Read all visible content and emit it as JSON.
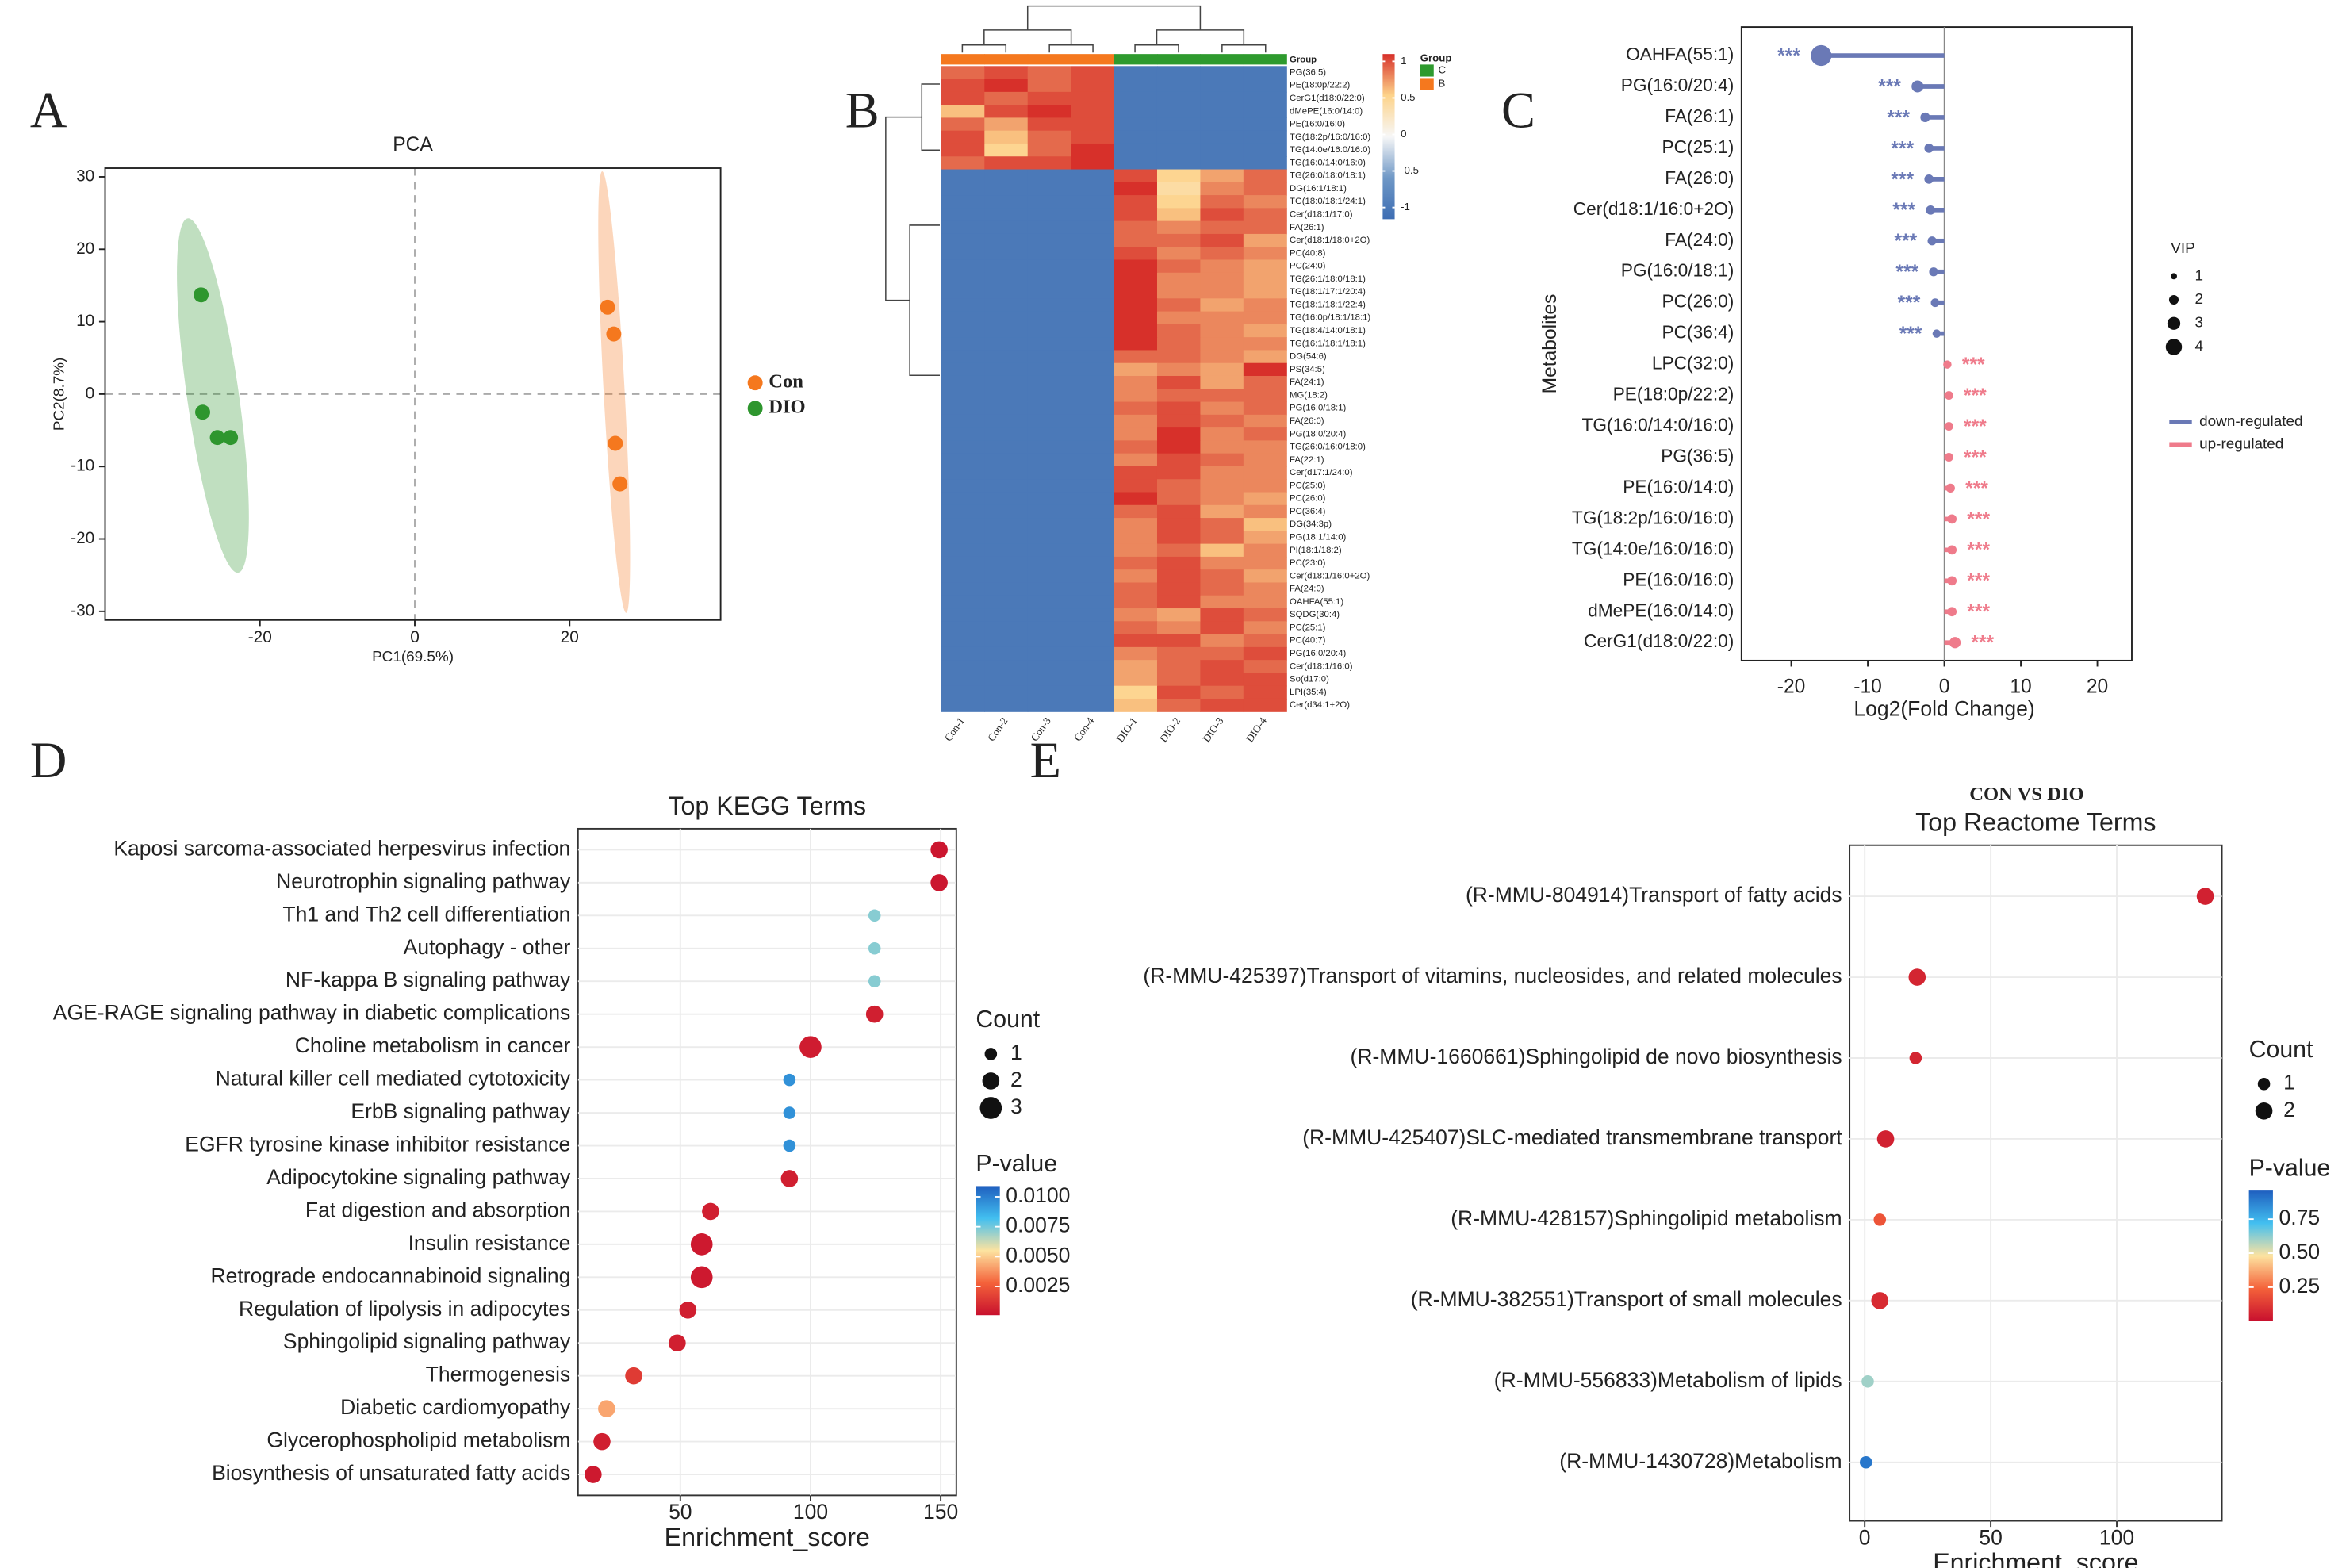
{
  "chart_data": [
    {
      "panel": "A",
      "type": "scatter",
      "title": "PCA",
      "x_label": "PC1(69.5%)",
      "y_label": "PC2(8.7%)",
      "xlim": [
        -40,
        39.5
      ],
      "ylim": [
        -31.2,
        31.2
      ],
      "xticks": [
        -20,
        0,
        20
      ],
      "yticks": [
        -30,
        -20,
        -10,
        0,
        10,
        20,
        30
      ],
      "zero_lines": true,
      "series": [
        {
          "name": "Con",
          "color": "#f5781e",
          "x": [
            24.9,
            25.7,
            25.9,
            26.5
          ],
          "values": [
            12.0,
            8.3,
            -6.8,
            -12.4
          ]
        },
        {
          "name": "DIO",
          "color": "#2e962e",
          "x": [
            -27.6,
            -27.4,
            -25.5,
            -23.8
          ],
          "values": [
            13.7,
            -2.5,
            -6.0,
            -6.0
          ]
        }
      ]
    },
    {
      "panel": "B",
      "type": "heatmap",
      "group_title": "Group",
      "groups": [
        {
          "name": "C",
          "color": "#2e9a2e"
        },
        {
          "name": "B",
          "color": "#f5781e"
        }
      ],
      "column_groups": [
        "B",
        "B",
        "B",
        "B",
        "C",
        "C",
        "C",
        "C"
      ],
      "columns": [
        "Con-1",
        "Con-2",
        "Con-3",
        "Con-4",
        "DIO-1",
        "DIO-2",
        "DIO-3",
        "DIO-4"
      ],
      "rows": [
        "PG(36:5)",
        "PE(18:0p/22:2)",
        "CerG1(d18:0/22:0)",
        "dMePE(16:0/14:0)",
        "PE(16:0/16:0)",
        "TG(18:2p/16:0/16:0)",
        "TG(14:0e/16:0/16:0)",
        "TG(16:0/14:0/16:0)",
        "TG(26:0/18:0/18:1)",
        "DG(16:1/18:1)",
        "TG(18:0/18:1/24:1)",
        "Cer(d18:1/17:0)",
        "FA(26:1)",
        "Cer(d18:1/18:0+2O)",
        "PC(40:8)",
        "PC(24:0)",
        "TG(26:1/18:0/18:1)",
        "TG(18:1/17:1/20:4)",
        "TG(18:1/18:1/22:4)",
        "TG(16:0p/18:1/18:1)",
        "TG(18:4/14:0/18:1)",
        "TG(16:1/18:1/18:1)",
        "DG(54:6)",
        "PS(34:5)",
        "FA(24:1)",
        "MG(18:2)",
        "PG(16:0/18:1)",
        "FA(26:0)",
        "PG(18:0/20:4)",
        "TG(26:0/16:0/18:0)",
        "FA(22:1)",
        "Cer(d17:1/24:0)",
        "PC(25:0)",
        "PC(26:0)",
        "PC(36:4)",
        "DG(34:3p)",
        "PG(18:1/14:0)",
        "PI(18:1/18:2)",
        "PC(23:0)",
        "Cer(d18:1/16:0+2O)",
        "FA(24:0)",
        "OAHFA(55:1)",
        "SQDG(30:4)",
        "PC(25:1)",
        "PC(40:7)",
        "PG(16:0/20:4)",
        "Cer(d18:1/16:0)",
        "So(d17:0)",
        "LPI(35:4)",
        "Cer(d34:1+2O)"
      ],
      "values": [
        [
          0.9,
          1.0,
          0.9,
          1.0,
          -1.0,
          -1.0,
          -1.0,
          -1.0
        ],
        [
          1.0,
          1.1,
          0.9,
          1.0,
          -1.0,
          -1.0,
          -1.0,
          -1.0
        ],
        [
          1.0,
          0.9,
          1.0,
          1.0,
          -1.0,
          -1.0,
          -1.0,
          -1.0
        ],
        [
          0.6,
          1.0,
          1.1,
          1.0,
          -1.0,
          -1.0,
          -1.0,
          -1.0
        ],
        [
          0.9,
          0.7,
          1.0,
          1.0,
          -1.0,
          -1.0,
          -1.0,
          -1.0
        ],
        [
          1.0,
          0.6,
          0.9,
          1.0,
          -1.0,
          -1.0,
          -1.0,
          -1.0
        ],
        [
          1.0,
          0.5,
          0.9,
          1.1,
          -1.0,
          -1.0,
          -1.0,
          -1.0
        ],
        [
          0.9,
          1.0,
          1.0,
          1.1,
          -1.0,
          -1.0,
          -1.0,
          -1.0
        ],
        [
          -1.0,
          -1.0,
          -1.0,
          -1.0,
          1.0,
          0.5,
          0.7,
          0.9
        ],
        [
          -1.0,
          -1.0,
          -1.0,
          -1.0,
          1.1,
          0.4,
          0.8,
          0.9
        ],
        [
          -1.0,
          -1.0,
          -1.0,
          -1.0,
          1.0,
          0.5,
          0.9,
          0.8
        ],
        [
          -1.0,
          -1.0,
          -1.0,
          -1.0,
          1.0,
          0.6,
          1.0,
          0.9
        ],
        [
          -1.0,
          -1.0,
          -1.0,
          -1.0,
          0.9,
          0.8,
          0.9,
          0.9
        ],
        [
          -1.0,
          -1.0,
          -1.0,
          -1.0,
          0.9,
          0.9,
          1.0,
          0.7
        ],
        [
          -1.0,
          -1.0,
          -1.0,
          -1.0,
          1.0,
          0.8,
          0.9,
          0.8
        ],
        [
          -1.0,
          -1.0,
          -1.0,
          -1.0,
          1.1,
          0.9,
          0.8,
          0.7
        ],
        [
          -1.0,
          -1.0,
          -1.0,
          -1.0,
          1.2,
          0.8,
          0.8,
          0.7
        ],
        [
          -1.0,
          -1.0,
          -1.0,
          -1.0,
          1.2,
          0.8,
          0.8,
          0.7
        ],
        [
          -1.0,
          -1.0,
          -1.0,
          -1.0,
          1.2,
          0.9,
          0.7,
          0.8
        ],
        [
          -1.0,
          -1.0,
          -1.0,
          -1.0,
          1.2,
          0.8,
          0.8,
          0.8
        ],
        [
          -1.0,
          -1.0,
          -1.0,
          -1.0,
          1.2,
          0.9,
          0.8,
          0.7
        ],
        [
          -1.0,
          -1.0,
          -1.0,
          -1.0,
          1.1,
          0.9,
          0.8,
          0.8
        ],
        [
          -1.0,
          -1.0,
          -1.0,
          -1.0,
          0.9,
          0.9,
          0.8,
          0.7
        ],
        [
          -1.0,
          -1.0,
          -1.0,
          -1.0,
          0.7,
          0.8,
          0.7,
          1.3
        ],
        [
          -1.0,
          -1.0,
          -1.0,
          -1.0,
          0.8,
          1.0,
          0.7,
          0.9
        ],
        [
          -1.0,
          -1.0,
          -1.0,
          -1.0,
          0.8,
          0.9,
          0.9,
          0.9
        ],
        [
          -1.0,
          -1.0,
          -1.0,
          -1.0,
          0.9,
          1.0,
          0.8,
          0.9
        ],
        [
          -1.0,
          -1.0,
          -1.0,
          -1.0,
          0.8,
          1.0,
          0.9,
          0.8
        ],
        [
          -1.0,
          -1.0,
          -1.0,
          -1.0,
          0.8,
          1.1,
          0.8,
          0.9
        ],
        [
          -1.0,
          -1.0,
          -1.0,
          -1.0,
          0.9,
          1.1,
          0.8,
          0.8
        ],
        [
          -1.0,
          -1.0,
          -1.0,
          -1.0,
          0.8,
          1.0,
          0.9,
          0.8
        ],
        [
          -1.0,
          -1.0,
          -1.0,
          -1.0,
          1.0,
          1.0,
          0.8,
          0.8
        ],
        [
          -1.0,
          -1.0,
          -1.0,
          -1.0,
          1.0,
          0.9,
          0.8,
          0.8
        ],
        [
          -1.0,
          -1.0,
          -1.0,
          -1.0,
          1.1,
          0.9,
          0.8,
          0.7
        ],
        [
          -1.0,
          -1.0,
          -1.0,
          -1.0,
          0.9,
          1.0,
          0.7,
          0.8
        ],
        [
          -1.0,
          -1.0,
          -1.0,
          -1.0,
          0.8,
          1.0,
          0.9,
          0.6
        ],
        [
          -1.0,
          -1.0,
          -1.0,
          -1.0,
          0.8,
          1.0,
          0.9,
          0.7
        ],
        [
          -1.0,
          -1.0,
          -1.0,
          -1.0,
          0.8,
          0.9,
          0.6,
          0.8
        ],
        [
          -1.0,
          -1.0,
          -1.0,
          -1.0,
          0.9,
          1.0,
          0.8,
          0.8
        ],
        [
          -1.0,
          -1.0,
          -1.0,
          -1.0,
          0.8,
          1.0,
          0.9,
          0.7
        ],
        [
          -1.0,
          -1.0,
          -1.0,
          -1.0,
          0.9,
          1.0,
          0.9,
          0.8
        ],
        [
          -1.0,
          -1.0,
          -1.0,
          -1.0,
          0.9,
          1.0,
          0.8,
          0.8
        ],
        [
          -1.0,
          -1.0,
          -1.0,
          -1.0,
          0.8,
          0.7,
          1.0,
          0.9
        ],
        [
          -1.0,
          -1.0,
          -1.0,
          -1.0,
          0.9,
          0.8,
          1.0,
          0.8
        ],
        [
          -1.0,
          -1.0,
          -1.0,
          -1.0,
          1.0,
          1.0,
          0.8,
          0.9
        ],
        [
          -1.0,
          -1.0,
          -1.0,
          -1.0,
          0.8,
          0.9,
          0.9,
          1.0
        ],
        [
          -1.0,
          -1.0,
          -1.0,
          -1.0,
          0.7,
          0.9,
          1.0,
          0.9
        ],
        [
          -1.0,
          -1.0,
          -1.0,
          -1.0,
          0.7,
          0.9,
          1.0,
          1.0
        ],
        [
          -1.0,
          -1.0,
          -1.0,
          -1.0,
          0.5,
          1.0,
          0.9,
          1.0
        ],
        [
          -1.0,
          -1.0,
          -1.0,
          -1.0,
          0.6,
          0.9,
          1.0,
          1.0
        ]
      ],
      "clim": [
        -1.16,
        1.1
      ],
      "cticks": [
        1,
        0.5,
        0,
        -0.5,
        -1
      ],
      "colormap": [
        "#3d6db3",
        "#6f98c6",
        "#f7f7f7",
        "#fdd38a",
        "#d7302a"
      ]
    },
    {
      "panel": "C",
      "type": "lollipop",
      "x_label": "Log2(Fold Change)",
      "y_label": "Metabolites",
      "xlim": [
        -26.5,
        24.5
      ],
      "xticks": [
        -20,
        -10,
        0,
        10,
        20
      ],
      "categories": [
        "OAHFA(55:1)",
        "PG(16:0/20:4)",
        "FA(26:1)",
        "PC(25:1)",
        "FA(26:0)",
        "Cer(d18:1/16:0+2O)",
        "FA(24:0)",
        "PG(16:0/18:1)",
        "PC(26:0)",
        "PC(36:4)",
        "LPC(32:0)",
        "PE(18:0p/22:2)",
        "TG(16:0/14:0/16:0)",
        "PG(36:5)",
        "PE(16:0/14:0)",
        "TG(18:2p/16:0/16:0)",
        "TG(14:0e/16:0/16:0)",
        "PE(16:0/16:0)",
        "dMePE(16:0/14:0)",
        "CerG1(d18:0/22:0)"
      ],
      "values": [
        -16.1,
        -3.5,
        -2.5,
        -2.0,
        -2.0,
        -1.8,
        -1.6,
        -1.4,
        -1.2,
        -1.0,
        0.4,
        0.6,
        0.6,
        0.6,
        0.8,
        1.0,
        1.0,
        1.0,
        1.0,
        1.4
      ],
      "vip": [
        5.4,
        2.7,
        2.0,
        1.9,
        1.9,
        1.9,
        1.8,
        1.8,
        1.7,
        1.6,
        1.6,
        1.7,
        1.7,
        1.7,
        1.8,
        1.9,
        1.9,
        1.9,
        1.9,
        2.5
      ],
      "significance": [
        "***",
        "***",
        "***",
        "***",
        "***",
        "***",
        "***",
        "***",
        "***",
        "***",
        "***",
        "***",
        "***",
        "***",
        "***",
        "***",
        "***",
        "***",
        "***",
        "***"
      ],
      "size_title": "VIP",
      "size_ticks": [
        1,
        2,
        3,
        4
      ],
      "directions": [
        {
          "name": "down-regulated",
          "color": "#6a79b6"
        },
        {
          "name": "up-regulated",
          "color": "#ef7b8b"
        }
      ]
    },
    {
      "panel": "D",
      "type": "dotplot",
      "title": "Top KEGG Terms",
      "x_label": "Enrichment_score",
      "xlim": [
        10.7,
        156
      ],
      "xticks": [
        50,
        100,
        150
      ],
      "categories": [
        "Kaposi sarcoma-associated herpesvirus infection",
        "Neurotrophin signaling pathway",
        "Th1 and Th2 cell differentiation",
        "Autophagy - other",
        "NF-kappa B signaling pathway",
        "AGE-RAGE signaling pathway in diabetic complications",
        "Choline metabolism in cancer",
        "Natural killer cell mediated cytotoxicity",
        "ErbB signaling pathway",
        "EGFR tyrosine kinase inhibitor resistance",
        "Adipocytokine signaling pathway",
        "Fat digestion and absorption",
        "Insulin resistance",
        "Retrograde endocannabinoid signaling",
        "Regulation of lipolysis in adipocytes",
        "Sphingolipid signaling pathway",
        "Thermogenesis",
        "Diabetic cardiomyopathy",
        "Glycerophospholipid metabolism",
        "Biosynthesis of unsaturated fatty acids"
      ],
      "values": [
        149.4,
        149.4,
        124.6,
        124.6,
        124.6,
        124.6,
        100,
        91.9,
        91.9,
        91.9,
        91.9,
        61.6,
        58.2,
        58.2,
        52.9,
        48.8,
        32.1,
        21.7,
        19.9,
        16.5
      ],
      "counts": [
        2,
        2,
        1,
        1,
        1,
        2,
        3,
        1,
        1,
        1,
        2,
        2,
        3,
        3,
        2,
        2,
        2,
        2,
        2,
        2
      ],
      "pvalues": [
        0.0003,
        0.0003,
        0.0072,
        0.0072,
        0.0072,
        0.0006,
        0.0005,
        0.0095,
        0.0095,
        0.0095,
        0.0006,
        0.0006,
        0.0004,
        0.0004,
        0.0006,
        0.0006,
        0.0015,
        0.0042,
        0.0006,
        0.0004
      ],
      "size_title": "Count",
      "size_ticks": [
        1,
        2,
        3
      ],
      "color_title": "P-value",
      "clim": [
        0.0001,
        0.0109
      ],
      "cticks": [
        {
          "value": 0.01,
          "label": "0.0100"
        },
        {
          "value": 0.0075,
          "label": "0.0075"
        },
        {
          "value": 0.005,
          "label": "0.0050"
        },
        {
          "value": 0.0025,
          "label": "0.0025"
        }
      ],
      "colormap": [
        "#c8102e",
        "#f4623a",
        "#fde3a0",
        "#42bff0",
        "#1f5fbf"
      ]
    },
    {
      "panel": "E",
      "type": "dotplot",
      "supertitle": "CON VS DIO",
      "title": "Top Reactome Terms",
      "x_label": "Enrichment_score",
      "xlim": [
        -6,
        141.7
      ],
      "xticks": [
        0,
        50,
        100
      ],
      "categories": [
        "(R-MMU-804914)Transport of fatty acids",
        "(R-MMU-425397)Transport of vitamins, nucleosides, and related molecules",
        "(R-MMU-1660661)Sphingolipid de novo biosynthesis",
        "(R-MMU-425407)SLC-mediated transmembrane transport",
        "(R-MMU-428157)Sphingolipid metabolism",
        "(R-MMU-382551)Transport of small molecules",
        "(R-MMU-556833)Metabolism of lipids",
        "(R-MMU-1430728)Metabolism"
      ],
      "values": [
        135.1,
        20.8,
        20.2,
        8.3,
        6.0,
        6.0,
        1.2,
        0.5
      ],
      "counts": [
        2,
        2,
        1,
        2,
        1,
        2,
        1,
        1
      ],
      "pvalues": [
        0.05,
        0.06,
        0.06,
        0.05,
        0.2,
        0.08,
        0.6,
        0.9
      ],
      "size_title": "Count",
      "size_ticks": [
        1,
        2
      ],
      "color_title": "P-value",
      "clim": [
        0,
        0.96
      ],
      "cticks": [
        0.75,
        {
          "value": 0.5,
          "label": "0.50"
        },
        0.25
      ],
      "colormap": [
        "#c8102e",
        "#f4623a",
        "#fde3a0",
        "#42bff0",
        "#1f5fbf"
      ]
    }
  ]
}
